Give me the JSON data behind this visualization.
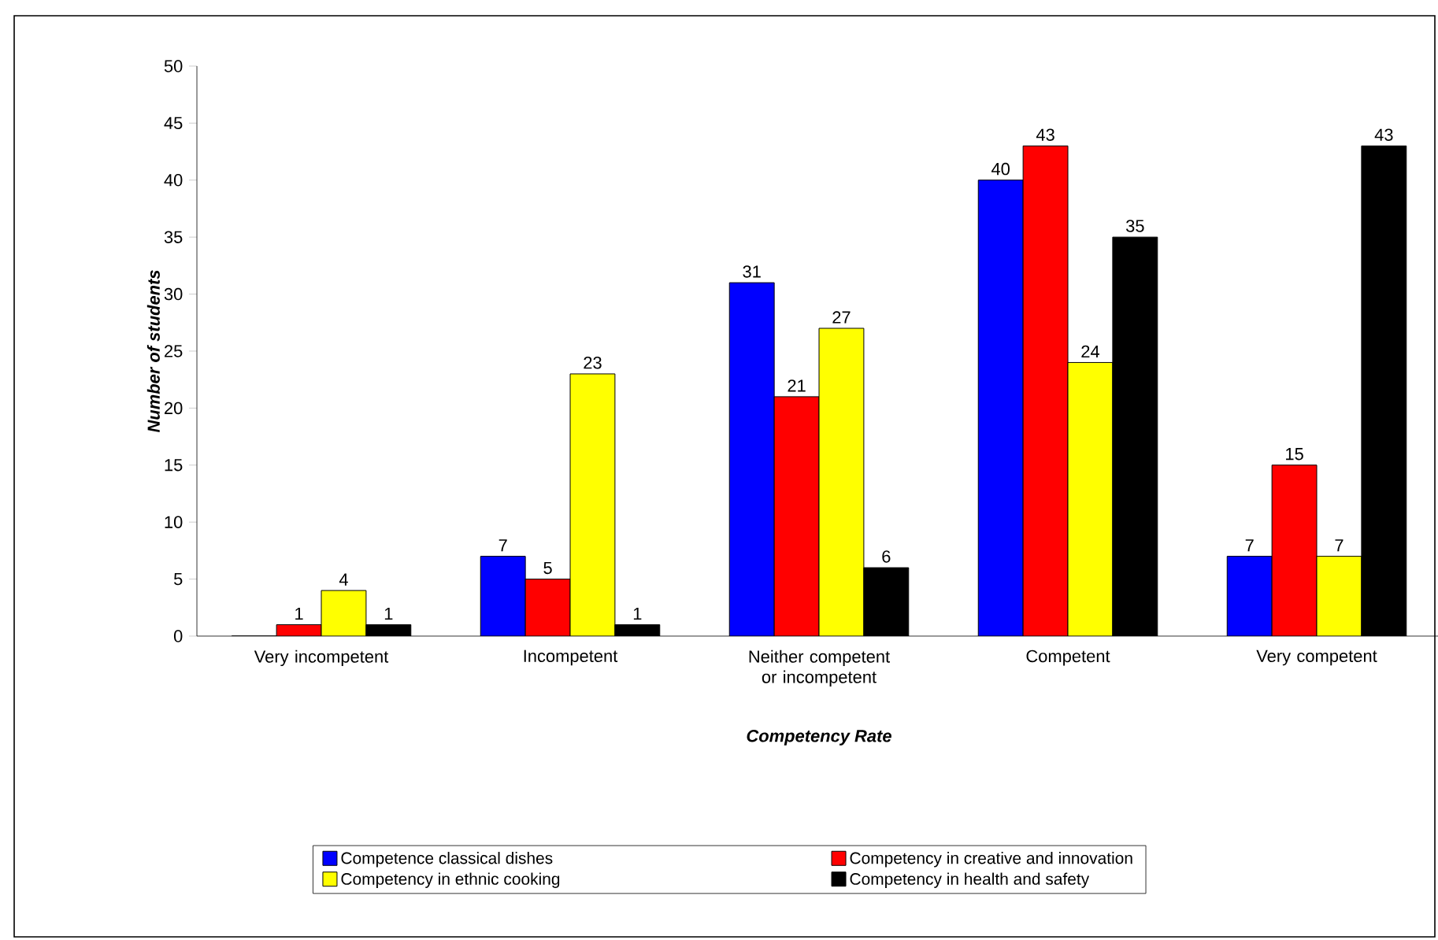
{
  "chart_data": {
    "type": "bar",
    "xlabel": "Competency Rate",
    "ylabel": "Number of students",
    "categories": [
      "Very incompetent",
      "Incompetent",
      "Neither competent or incompetent",
      "Competent",
      "Very competent"
    ],
    "series": [
      {
        "name": "Competence classical dishes",
        "color": "#0000ff",
        "values": [
          0,
          7,
          31,
          40,
          7
        ],
        "value_labels": [
          null,
          "7",
          "31",
          "40",
          "7"
        ]
      },
      {
        "name": "Competency in creative and innovation",
        "color": "#ff0000",
        "values": [
          1,
          5,
          21,
          43,
          15
        ],
        "value_labels": [
          "1",
          "5",
          "21",
          "43",
          "15"
        ]
      },
      {
        "name": "Competency in ethnic cooking",
        "color": "#ffff00",
        "values": [
          4,
          23,
          27,
          24,
          7
        ],
        "value_labels": [
          "4",
          "23",
          "27",
          "24",
          "7"
        ]
      },
      {
        "name": "Competency in health and safety",
        "color": "#000000",
        "values": [
          1,
          1,
          6,
          35,
          43
        ],
        "value_labels": [
          "1",
          "1",
          "6",
          "35",
          "43"
        ]
      }
    ],
    "ylim": [
      0,
      50
    ],
    "yticks": [
      0,
      5,
      10,
      15,
      20,
      25,
      30,
      35,
      40,
      45,
      50
    ],
    "grid": false,
    "legend": "bottom"
  }
}
